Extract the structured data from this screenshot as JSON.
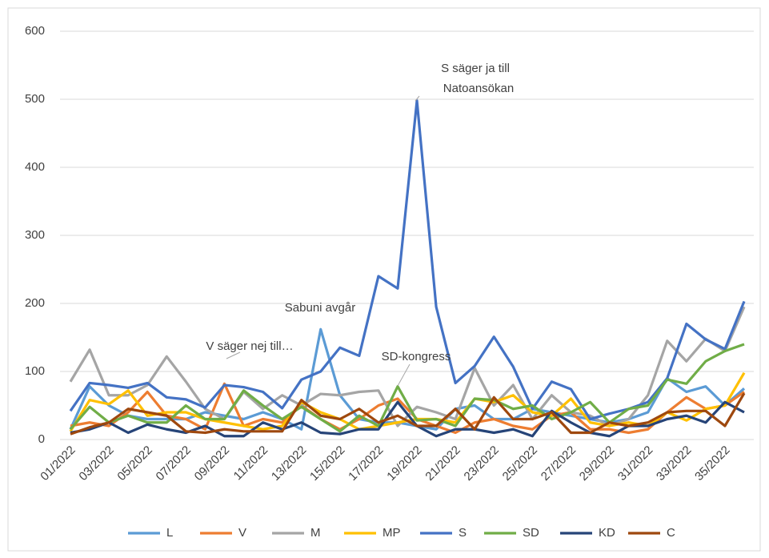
{
  "chart_data": {
    "type": "line",
    "categories": [
      "01/2022",
      null,
      "03/2022",
      null,
      "05/2022",
      null,
      "07/2022",
      null,
      "09/2022",
      null,
      "11/2022",
      null,
      "13/2022",
      null,
      "15/2022",
      null,
      "17/2022",
      null,
      "19/2022",
      null,
      "21/2022",
      null,
      "23/2022",
      null,
      "25/2022",
      null,
      "27/2022",
      null,
      "29/2022",
      null,
      "31/2022",
      null,
      "33/2022",
      null,
      "35/2022",
      null
    ],
    "series": [
      {
        "name": "L",
        "color": "#5b9bd5",
        "values": [
          15,
          78,
          50,
          35,
          30,
          30,
          30,
          40,
          35,
          30,
          40,
          30,
          15,
          162,
          65,
          30,
          25,
          25,
          20,
          15,
          45,
          50,
          30,
          30,
          45,
          40,
          35,
          30,
          25,
          30,
          40,
          90,
          70,
          78,
          50,
          75
        ]
      },
      {
        "name": "V",
        "color": "#ed7d31",
        "values": [
          20,
          25,
          20,
          40,
          70,
          35,
          30,
          15,
          82,
          20,
          30,
          25,
          50,
          30,
          15,
          30,
          50,
          60,
          30,
          20,
          10,
          25,
          30,
          20,
          15,
          35,
          40,
          15,
          15,
          10,
          15,
          40,
          62,
          45,
          50,
          70
        ]
      },
      {
        "name": "M",
        "color": "#a5a5a5",
        "values": [
          85,
          132,
          65,
          65,
          80,
          122,
          85,
          45,
          30,
          70,
          45,
          65,
          50,
          67,
          65,
          70,
          72,
          20,
          48,
          40,
          30,
          105,
          50,
          80,
          30,
          65,
          40,
          35,
          20,
          30,
          65,
          145,
          115,
          148,
          130,
          195
        ]
      },
      {
        "name": "MP",
        "color": "#ffc000",
        "values": [
          12,
          58,
          52,
          72,
          35,
          40,
          40,
          30,
          25,
          20,
          15,
          20,
          55,
          40,
          30,
          15,
          20,
          25,
          30,
          30,
          25,
          60,
          55,
          65,
          40,
          35,
          60,
          25,
          20,
          25,
          20,
          40,
          28,
          45,
          50,
          98
        ]
      },
      {
        "name": "S",
        "color": "#4472c4",
        "values": [
          42,
          83,
          80,
          76,
          83,
          62,
          59,
          47,
          80,
          77,
          70,
          46,
          88,
          100,
          135,
          123,
          240,
          222,
          498,
          195,
          83,
          108,
          151,
          107,
          45,
          85,
          74,
          30,
          38,
          45,
          55,
          90,
          170,
          147,
          133,
          203
        ]
      },
      {
        "name": "SD",
        "color": "#70ad47",
        "values": [
          15,
          48,
          25,
          35,
          25,
          25,
          50,
          30,
          30,
          72,
          50,
          30,
          48,
          30,
          12,
          35,
          20,
          78,
          28,
          30,
          20,
          60,
          58,
          45,
          50,
          30,
          40,
          55,
          25,
          45,
          50,
          88,
          82,
          115,
          130,
          140
        ]
      },
      {
        "name": "KD",
        "color": "#264478",
        "values": [
          10,
          15,
          25,
          10,
          22,
          15,
          10,
          20,
          5,
          5,
          25,
          15,
          25,
          10,
          8,
          15,
          15,
          55,
          20,
          5,
          15,
          15,
          10,
          15,
          5,
          42,
          25,
          10,
          5,
          20,
          20,
          30,
          35,
          25,
          55,
          40
        ]
      },
      {
        "name": "C",
        "color": "#9e480e",
        "values": [
          8,
          18,
          25,
          45,
          40,
          35,
          12,
          10,
          15,
          12,
          12,
          12,
          58,
          35,
          30,
          45,
          25,
          35,
          20,
          20,
          45,
          15,
          62,
          30,
          30,
          40,
          10,
          10,
          25,
          20,
          25,
          40,
          42,
          42,
          20,
          68
        ]
      }
    ],
    "annotations": [
      "S säger ja till",
      "Natoansökan",
      "Sabuni avgår",
      "V säger nej till…",
      "SD-kongress"
    ],
    "ylim": [
      0,
      600
    ],
    "yticks": [
      0,
      100,
      200,
      300,
      400,
      500,
      600
    ],
    "grid": true,
    "legend": "bottom"
  }
}
